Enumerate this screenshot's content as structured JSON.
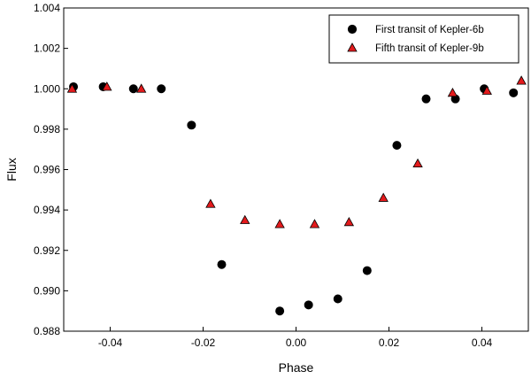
{
  "chart_data": {
    "type": "scatter",
    "title": "",
    "xlabel": "Phase",
    "ylabel": "Flux",
    "xlim": [
      -0.05,
      0.05
    ],
    "ylim": [
      0.988,
      1.004
    ],
    "x_ticks": [
      -0.04,
      -0.02,
      0.0,
      0.02,
      0.04
    ],
    "x_tick_labels": [
      "-0.04",
      "-0.02",
      "0.00",
      "0.02",
      "0.04"
    ],
    "y_ticks": [
      0.988,
      0.99,
      0.992,
      0.994,
      0.996,
      0.998,
      1.0,
      1.002,
      1.004
    ],
    "y_tick_labels": [
      "0.988",
      "0.990",
      "0.992",
      "0.994",
      "0.996",
      "0.998",
      "1.000",
      "1.002",
      "1.004"
    ],
    "grid": false,
    "legend_position": "top-right",
    "series": [
      {
        "name": "First transit of Kepler-6b",
        "marker": "circle",
        "color": "#000000",
        "x": [
          -0.0479,
          -0.0415,
          -0.035,
          -0.029,
          -0.0225,
          -0.016,
          -0.0035,
          0.0027,
          0.009,
          0.0153,
          0.0217,
          0.028,
          0.0343,
          0.0405,
          0.0468
        ],
        "y": [
          1.0001,
          1.0001,
          1.0,
          1.0,
          0.9982,
          0.9913,
          0.989,
          0.9893,
          0.9896,
          0.991,
          0.9972,
          0.9995,
          0.9995,
          1.0,
          0.9998
        ]
      },
      {
        "name": "Fifth transit of Kepler-9b",
        "marker": "triangle",
        "color": "#e31a1c",
        "x": [
          -0.0482,
          -0.0407,
          -0.0333,
          -0.0184,
          -0.011,
          -0.0035,
          0.004,
          0.0114,
          0.0188,
          0.0262,
          0.0337,
          0.0411,
          0.0485
        ],
        "y": [
          1.0,
          1.0001,
          1.0,
          0.9943,
          0.9935,
          0.9933,
          0.9933,
          0.9934,
          0.9946,
          0.9963,
          0.9998,
          0.9999,
          1.0004
        ]
      }
    ]
  }
}
